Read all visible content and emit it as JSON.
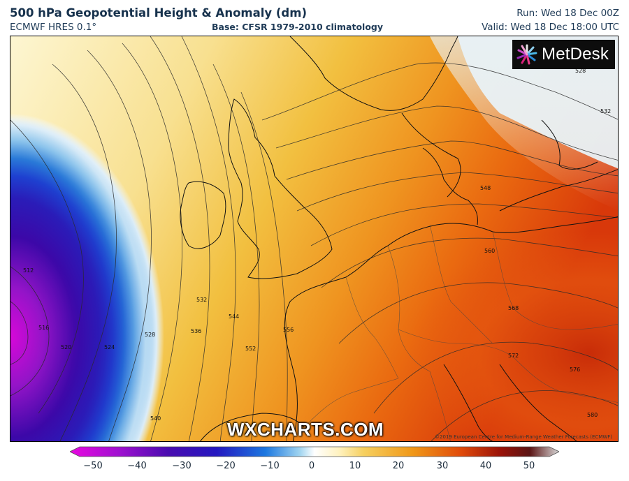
{
  "header": {
    "title": "500 hPa Geopotential Height & Anomaly (dm)",
    "model": "ECMWF HRES 0.1°",
    "base": "Base: CFSR 1979-2010 climatology",
    "run": "Run: Wed 18 Dec 00Z",
    "valid": "Valid: Wed 18 Dec 18:00 UTC"
  },
  "logo": {
    "text": "MetDesk"
  },
  "watermark": "WXCHARTS.COM",
  "copyright": "©2019 European Centre for Medium-Range Weather Forecasts (ECMWF)",
  "contour_labels": [
    "512",
    "516",
    "520",
    "524",
    "528",
    "532",
    "536",
    "540",
    "544",
    "552",
    "556",
    "560",
    "568",
    "572",
    "576",
    "580",
    "548",
    "528",
    "532"
  ],
  "colorbar": {
    "ticks": [
      "−50",
      "−40",
      "−30",
      "−20",
      "−10",
      "0",
      "10",
      "20",
      "30",
      "40",
      "50"
    ],
    "min": -50,
    "max": 50,
    "colors": [
      "#e008d8",
      "#8a10c8",
      "#3a0aa8",
      "#1a2fc8",
      "#1e7ee0",
      "#a8d8f0",
      "#fff6c8",
      "#f2c14a",
      "#ee7a10",
      "#c82a08",
      "#6a0c08",
      "#c0c0c0"
    ]
  }
}
